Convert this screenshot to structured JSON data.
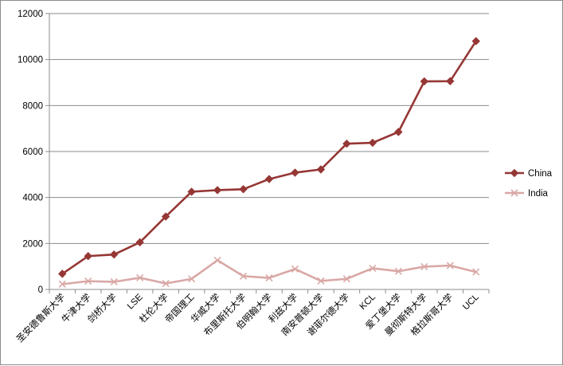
{
  "chart_data": {
    "type": "line",
    "categories": [
      "圣安德鲁斯大学",
      "牛津大学",
      "剑桥大学",
      "LSE",
      "杜伦大学",
      "帝国理工",
      "华威大学",
      "布里斯托大学",
      "伯明翰大学",
      "利兹大学",
      "南安普顿大学",
      "谢菲尔德大学",
      "KCL",
      "爱丁堡大学",
      "曼彻斯特大学",
      "格拉斯哥大学",
      "UCL"
    ],
    "series": [
      {
        "name": "China",
        "color": "#953735",
        "marker": "diamond",
        "values": [
          680,
          1450,
          1520,
          2050,
          3170,
          4250,
          4320,
          4360,
          4800,
          5080,
          5220,
          6340,
          6380,
          6850,
          9050,
          9060,
          10800
        ]
      },
      {
        "name": "India",
        "color": "#d9a8a6",
        "marker": "x",
        "values": [
          230,
          360,
          330,
          510,
          260,
          460,
          1270,
          580,
          500,
          890,
          370,
          460,
          920,
          790,
          990,
          1040,
          760
        ]
      }
    ],
    "ylim": [
      0,
      12000
    ],
    "yticks": [
      0,
      2000,
      4000,
      6000,
      8000,
      10000,
      12000
    ],
    "grid": "horizontal",
    "legend_position": "right"
  }
}
